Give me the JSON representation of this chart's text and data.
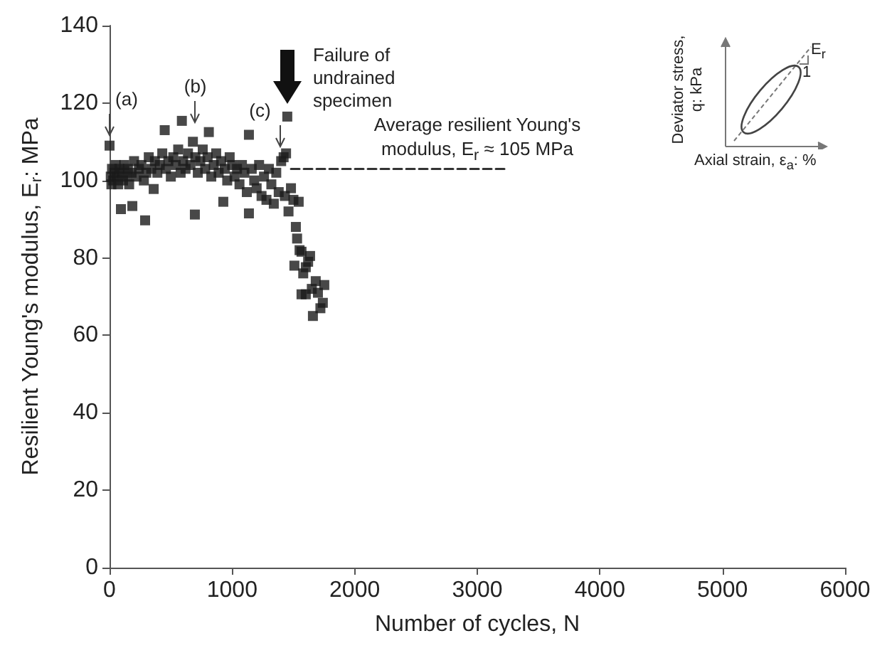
{
  "chart_data": {
    "type": "scatter",
    "xlabel": "Number of cycles, N",
    "ylabel": "Resilient Young's modulus, E$_{r}$: MPa",
    "xlim": [
      0,
      6000
    ],
    "xticks": [
      0,
      1000,
      2000,
      3000,
      4000,
      5000,
      6000
    ],
    "ylim": [
      0,
      140
    ],
    "yticks": [
      0,
      20,
      40,
      60,
      80,
      100,
      120,
      140
    ],
    "grid": false,
    "marker": "square",
    "series": [
      {
        "type": "scatter",
        "color": "#1a1a1a",
        "x": [
          0,
          10,
          15,
          20,
          30,
          40,
          50,
          60,
          70,
          80,
          93,
          100,
          110,
          120,
          140,
          150,
          160,
          186,
          180,
          200,
          220,
          240,
          260,
          280,
          290,
          300,
          320,
          340,
          360,
          370,
          390,
          410,
          430,
          450,
          460,
          480,
          500,
          520,
          540,
          560,
          580,
          590,
          600,
          620,
          640,
          660,
          680,
          696,
          700,
          720,
          740,
          760,
          780,
          800,
          810,
          830,
          850,
          870,
          890,
          910,
          928,
          940,
          960,
          980,
          1000,
          1020,
          1040,
          1060,
          1080,
          1100,
          1120,
          1137,
          1137,
          1160,
          1180,
          1200,
          1220,
          1240,
          1260,
          1280,
          1300,
          1320,
          1340,
          1360,
          1380,
          1400,
          1420,
          1440,
          1450,
          1430,
          1460,
          1480,
          1500,
          1508,
          1520,
          1543,
          1530,
          1550,
          1566,
          1566,
          1580,
          1601,
          1601,
          1620,
          1636,
          1650,
          1659,
          1682,
          1700,
          1720,
          1740,
          1752
        ],
        "values": [
          109,
          101,
          99,
          103,
          100,
          102,
          104,
          101,
          99,
          103,
          92.6,
          102,
          100,
          104,
          101,
          103,
          99,
          93.4,
          102,
          105,
          101,
          103,
          104,
          100,
          89.7,
          102,
          106,
          103,
          97.8,
          105,
          102,
          104,
          107,
          113,
          103,
          105,
          101,
          106,
          104,
          108,
          102,
          115.4,
          105,
          103,
          107,
          104,
          110,
          91.2,
          106,
          102,
          105,
          108,
          103,
          106,
          112.5,
          101,
          104,
          107,
          102,
          105,
          94.5,
          103,
          100,
          106,
          104,
          101,
          103,
          99,
          104,
          102,
          97,
          111.8,
          91.5,
          103,
          100,
          98,
          104,
          96,
          101,
          95,
          103,
          99,
          94,
          102,
          97,
          105,
          106,
          107,
          116.5,
          96,
          92,
          98,
          95,
          78,
          88,
          94.5,
          85,
          82,
          81.6,
          70.6,
          76,
          77.6,
          70.6,
          79,
          80.5,
          72,
          65,
          74,
          71,
          67,
          68.4,
          73
        ]
      },
      {
        "type": "line",
        "color": "#333333",
        "marker": "none",
        "line_style": "dashed",
        "x": [
          1480,
          3250
        ],
        "values": [
          103,
          103
        ]
      }
    ],
    "annotations": [
      {
        "text": "(a)",
        "x": 0,
        "y": 110
      },
      {
        "text": "(b)",
        "x": 700,
        "y": 113
      },
      {
        "text": "(c)",
        "x": 1390,
        "y": 107
      },
      {
        "text": "Failure of undrained specimen",
        "x": 1450,
        "y": 119
      },
      {
        "text": "Average resilient Young's modulus, E$_{r}$ ≈ 105 MPa",
        "x": 3000,
        "y": 103
      },
      "Deviator stress, q: kPa",
      "Axial strain, ε$_{a}$: %",
      "E$_{r}$",
      "1"
    ]
  }
}
